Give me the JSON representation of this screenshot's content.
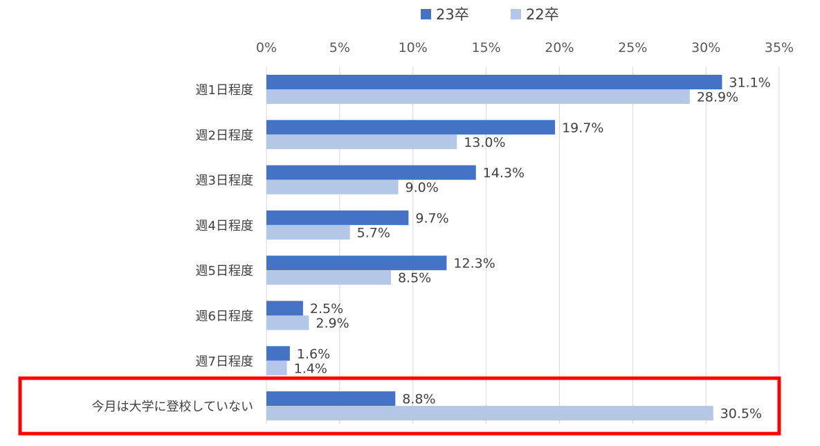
{
  "chart_data": {
    "type": "bar",
    "orientation": "horizontal",
    "xlim": [
      0,
      35
    ],
    "tick_values": [
      0,
      5,
      10,
      15,
      20,
      25,
      30,
      35
    ],
    "tick_labels": [
      "0%",
      "5%",
      "10%",
      "15%",
      "20%",
      "25%",
      "30%",
      "35%"
    ],
    "categories": [
      "週1日程度",
      "週2日程度",
      "週3日程度",
      "週4日程度",
      "週5日程度",
      "週6日程度",
      "週7日程度",
      "今月は大学に登校していない"
    ],
    "series": [
      {
        "name": "23卒",
        "color": "#4472c4",
        "values": [
          31.1,
          19.7,
          14.3,
          9.7,
          12.3,
          2.5,
          1.6,
          8.8
        ],
        "labels": [
          "31.1%",
          "19.7%",
          "14.3%",
          "9.7%",
          "12.3%",
          "2.5%",
          "1.6%",
          "8.8%"
        ]
      },
      {
        "name": "22卒",
        "color": "#b4c7e7",
        "values": [
          28.9,
          13.0,
          9.0,
          5.7,
          8.5,
          2.9,
          1.4,
          30.5
        ],
        "labels": [
          "28.9%",
          "13.0%",
          "9.0%",
          "5.7%",
          "8.5%",
          "2.9%",
          "1.4%",
          "30.5%"
        ]
      }
    ],
    "grid": true,
    "legend_position": "top",
    "highlighted_category": "今月は大学に登校していない",
    "highlight_color": "#ff0000"
  }
}
